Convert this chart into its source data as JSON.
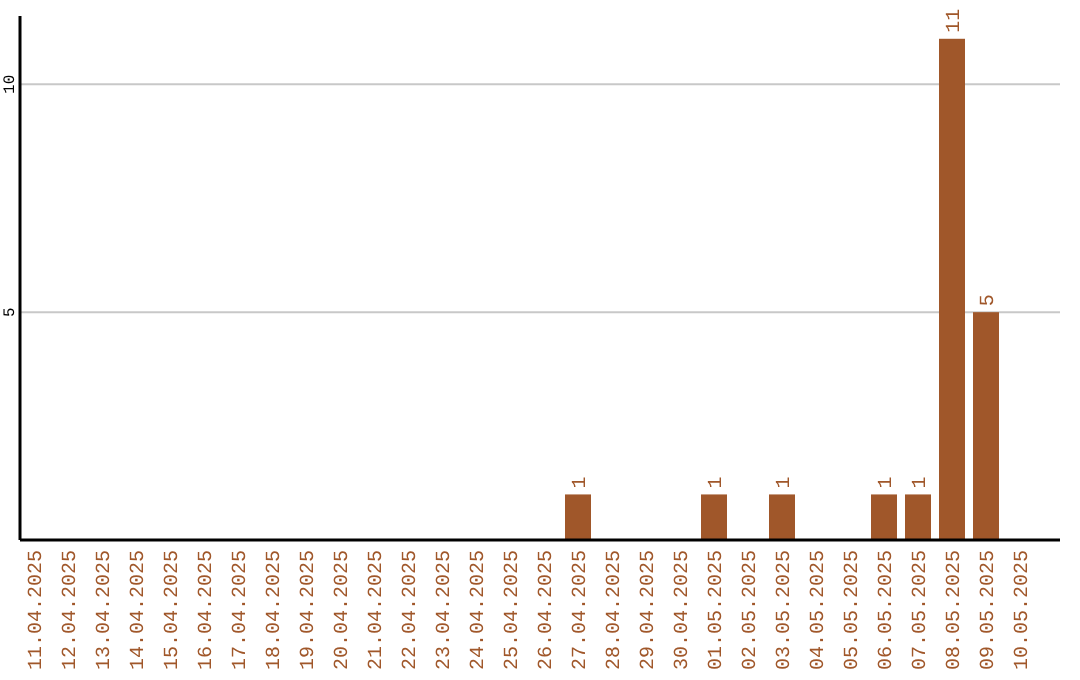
{
  "chart_data": {
    "type": "bar",
    "categories": [
      "11.04.2025",
      "12.04.2025",
      "13.04.2025",
      "14.04.2025",
      "15.04.2025",
      "16.04.2025",
      "17.04.2025",
      "18.04.2025",
      "19.04.2025",
      "20.04.2025",
      "21.04.2025",
      "22.04.2025",
      "23.04.2025",
      "24.04.2025",
      "25.04.2025",
      "26.04.2025",
      "27.04.2025",
      "28.04.2025",
      "29.04.2025",
      "30.04.2025",
      "01.05.2025",
      "02.05.2025",
      "03.05.2025",
      "04.05.2025",
      "05.05.2025",
      "06.05.2025",
      "07.05.2025",
      "08.05.2025",
      "09.05.2025",
      "10.05.2025"
    ],
    "values": [
      0,
      0,
      0,
      0,
      0,
      0,
      0,
      0,
      0,
      0,
      0,
      0,
      0,
      0,
      0,
      0,
      1,
      0,
      0,
      0,
      1,
      0,
      1,
      0,
      0,
      1,
      1,
      11,
      5,
      0
    ],
    "value_labels": [
      null,
      null,
      null,
      null,
      null,
      null,
      null,
      null,
      null,
      null,
      null,
      null,
      null,
      null,
      null,
      null,
      "1",
      null,
      null,
      null,
      "1",
      null,
      "1",
      null,
      null,
      "1",
      "1",
      "11",
      "5",
      null
    ],
    "color": "#a0572a",
    "ylim": [
      0,
      11.5
    ],
    "yticks": [
      5,
      10
    ],
    "grid": "y"
  }
}
